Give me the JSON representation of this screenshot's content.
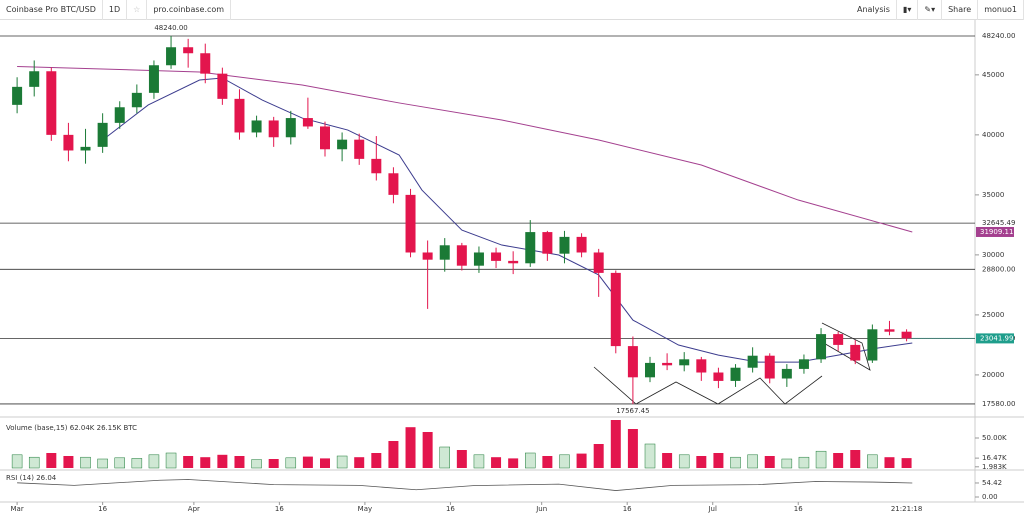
{
  "toolbar": {
    "symbol": "Coinbase Pro BTC/USD",
    "interval": "1D",
    "site": "pro.coinbase.com",
    "analysis": "Analysis",
    "share": "Share",
    "user": "monuo1"
  },
  "chart_data": [
    {
      "type": "candlestick",
      "x": [
        0,
        3,
        6,
        9,
        12,
        15,
        18,
        21,
        24,
        27,
        30,
        33,
        36,
        39,
        42,
        45,
        48,
        51,
        54,
        57,
        60,
        63,
        66,
        69,
        72,
        75,
        78,
        81,
        84,
        87,
        90,
        93,
        96,
        99,
        102,
        105,
        108,
        111,
        114,
        117,
        120,
        123,
        126,
        129,
        132,
        135,
        138,
        141,
        144,
        147,
        150,
        153,
        156
      ],
      "open": [
        42500,
        44000,
        45300,
        40000,
        38700,
        39000,
        41000,
        42300,
        43500,
        45800,
        47300,
        46800,
        45100,
        43000,
        40200,
        41200,
        39800,
        41400,
        40700,
        38800,
        39600,
        38000,
        36800,
        35000,
        30200,
        29600,
        30800,
        29100,
        30200,
        29500,
        29300,
        31900,
        30100,
        31500,
        30200,
        28500,
        22400,
        19800,
        21000,
        20800,
        21300,
        20200,
        19500,
        20600,
        21600,
        19700,
        20500,
        21300,
        23400,
        22500,
        21200,
        23800,
        23600
      ],
      "high": [
        44800,
        46200,
        45600,
        41000,
        40500,
        41800,
        42800,
        44200,
        46200,
        48240,
        48000,
        47600,
        45600,
        43800,
        41600,
        41500,
        42000,
        43100,
        41100,
        40200,
        40100,
        39900,
        37300,
        35500,
        31200,
        31400,
        31000,
        30700,
        30600,
        30300,
        32900,
        32000,
        32000,
        31800,
        30500,
        28700,
        23200,
        21500,
        21800,
        21900,
        21500,
        20600,
        20900,
        22300,
        21800,
        20900,
        21700,
        23900,
        23600,
        22900,
        24200,
        24500,
        23800
      ],
      "low": [
        41800,
        43200,
        39500,
        37800,
        37600,
        38500,
        40500,
        41800,
        43000,
        45500,
        45600,
        44300,
        42500,
        39600,
        39800,
        39000,
        39200,
        40500,
        38200,
        37800,
        37500,
        36200,
        34300,
        29800,
        25500,
        28600,
        28700,
        28500,
        28900,
        28400,
        29000,
        29500,
        29300,
        29800,
        26500,
        21800,
        17567.45,
        19400,
        20400,
        20300,
        19500,
        18900,
        19000,
        20200,
        19300,
        19000,
        20100,
        21000,
        22000,
        20900,
        21000,
        23300,
        22800
      ],
      "close": [
        44000,
        45300,
        40000,
        38700,
        39000,
        41000,
        42300,
        43500,
        45800,
        47300,
        46800,
        45100,
        43000,
        40200,
        41200,
        39800,
        41400,
        40700,
        38800,
        39600,
        38000,
        36800,
        35000,
        30200,
        29600,
        30800,
        29100,
        30200,
        29500,
        29300,
        31900,
        30100,
        31500,
        30200,
        28500,
        22400,
        19800,
        21000,
        20800,
        21300,
        20200,
        19500,
        20600,
        21600,
        19700,
        20500,
        21300,
        23400,
        22500,
        21200,
        23800,
        23600,
        23041.99
      ],
      "up_color": "#1b7a36",
      "down_color": "#e3154d",
      "lines": [
        {
          "color": "#a4408f",
          "x": [
            0,
            32,
            50,
            67,
            85,
            102,
            120,
            137,
            157
          ],
          "values": [
            45700,
            45240,
            44150,
            42660,
            41240,
            39570,
            37490,
            34570,
            31909.11
          ]
        },
        {
          "color": "#3c3c8e",
          "x": [
            15,
            23,
            32,
            36,
            43,
            50,
            58,
            67,
            71,
            78,
            85,
            95,
            102,
            108,
            116,
            123,
            130,
            137,
            144,
            151,
            157
          ],
          "values": [
            39570,
            42490,
            44570,
            44740,
            42900,
            41400,
            40400,
            38320,
            35400,
            32070,
            30820,
            29990,
            28330,
            24570,
            22490,
            21650,
            21070,
            21070,
            21650,
            22240,
            22660
          ]
        }
      ],
      "annotations": [
        "48240.00",
        "17567.45"
      ],
      "levels": [
        {
          "value": 48240,
          "label": "48240.00"
        },
        {
          "value": 32645.49,
          "label": "32645.49"
        },
        {
          "value": 28800,
          "label": "28800.00"
        },
        {
          "value": 23041.99,
          "label": "23041.99"
        },
        {
          "value": 17580,
          "label": "17580.00"
        }
      ],
      "price_label": {
        "value": 23041.99,
        "label": "23041.99",
        "color": "#1f9e8c"
      },
      "ma_label": {
        "value": 31909.11,
        "label": "31909.11",
        "color": "#a4408f"
      },
      "xlim": [
        -3,
        168
      ],
      "ylim": [
        16660,
        49570
      ],
      "yticks": [
        20000,
        25000,
        30000,
        35000,
        40000,
        45000
      ],
      "xticks": [
        {
          "value": 0,
          "label": "Mar"
        },
        {
          "value": 15,
          "label": "16"
        },
        {
          "value": 31,
          "label": "Apr"
        },
        {
          "value": 46,
          "label": "16"
        },
        {
          "value": 61,
          "label": "May"
        },
        {
          "value": 76,
          "label": "16"
        },
        {
          "value": 92,
          "label": "Jun"
        },
        {
          "value": 107,
          "label": "16"
        },
        {
          "value": 122,
          "label": "Jul"
        },
        {
          "value": 137,
          "label": "16"
        }
      ],
      "countdown": "21:21:18"
    },
    {
      "type": "bar",
      "title": "Volume (base,15) 62.04K 26.15K BTC",
      "values": [
        22000,
        18000,
        25000,
        20000,
        18000,
        15000,
        17000,
        16000,
        22000,
        25000,
        20000,
        18000,
        22000,
        20000,
        14000,
        15000,
        17000,
        19000,
        16000,
        20000,
        18000,
        25000,
        45000,
        68000,
        60000,
        35000,
        30000,
        22000,
        18000,
        16000,
        25000,
        20000,
        22000,
        24000,
        40000,
        80000,
        65000,
        40000,
        25000,
        22000,
        20000,
        25000,
        18000,
        22000,
        20000,
        15000,
        18000,
        28000,
        25000,
        30000,
        22000,
        18000,
        16470
      ],
      "ylim": [
        0,
        80000
      ],
      "yticks": [
        {
          "value": 50000,
          "label": "50.00K"
        },
        {
          "value": 16470,
          "label": "16.47K"
        },
        {
          "value": 1983,
          "label": "1.983K"
        }
      ]
    },
    {
      "type": "line",
      "title": "RSI (14) 26.04",
      "color": "#555555",
      "x": [
        0,
        10,
        25,
        30,
        45,
        60,
        70,
        80,
        95,
        105,
        115,
        130,
        140,
        150,
        157
      ],
      "values": [
        55,
        45,
        65,
        68,
        48,
        45,
        28,
        44,
        50,
        25,
        45,
        48,
        60,
        58,
        54.42
      ],
      "ylim": [
        0,
        97
      ],
      "yticks": [
        54.42,
        {
          "value": 0,
          "label": "0.00"
        }
      ]
    }
  ]
}
